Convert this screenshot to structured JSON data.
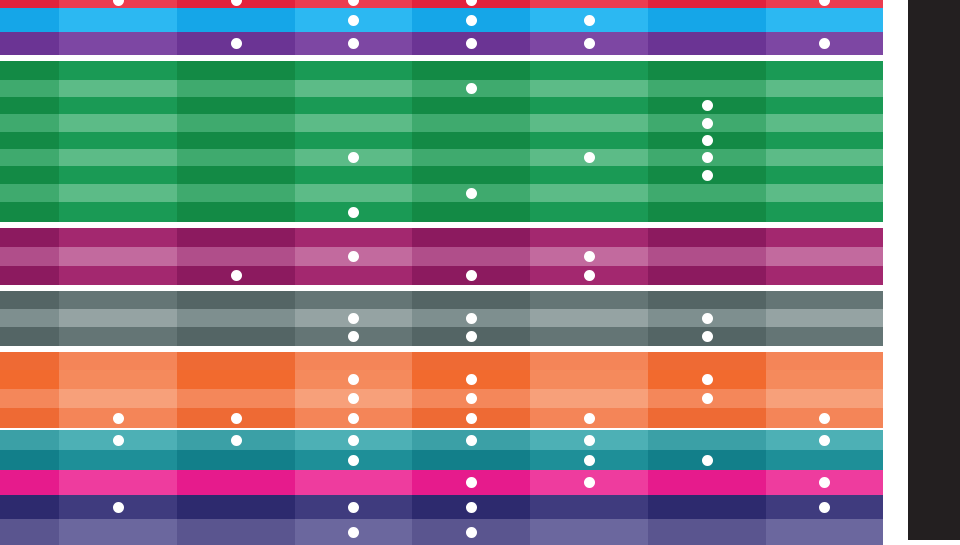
{
  "columns": 8,
  "colors": {
    "background": "#ffffff",
    "frame": "#231f20"
  },
  "groups": [
    {
      "name": "red",
      "rows": [
        {
          "dark": "#e2223d",
          "light": "#ec3c4f",
          "dots": [
            1,
            2,
            3,
            4,
            7
          ]
        }
      ]
    },
    {
      "name": "blue",
      "rows": [
        {
          "dark": "#15a6e8",
          "light": "#2cb8f2",
          "dots": [
            3,
            4,
            5
          ]
        }
      ]
    },
    {
      "name": "purple",
      "rows": [
        {
          "dark": "#6b3494",
          "light": "#7d47a3",
          "dots": [
            2,
            3,
            4,
            5,
            7
          ]
        }
      ]
    },
    {
      "name": "green",
      "rows": [
        {
          "dark": "#138a45",
          "light": "#1a9a55",
          "dots": []
        },
        {
          "dark": "#3faa6e",
          "light": "#5cbb87",
          "dots": [
            4
          ]
        },
        {
          "dark": "#138a45",
          "light": "#1a9a55",
          "dots": [
            6
          ]
        },
        {
          "dark": "#3faa6e",
          "light": "#5cbb87",
          "dots": [
            6
          ]
        },
        {
          "dark": "#138a45",
          "light": "#1a9a55",
          "dots": [
            6
          ]
        },
        {
          "dark": "#3faa6e",
          "light": "#5cbb87",
          "dots": [
            3,
            5,
            6
          ]
        },
        {
          "dark": "#138a45",
          "light": "#1a9a55",
          "dots": [
            6
          ]
        },
        {
          "dark": "#3faa6e",
          "light": "#5cbb87",
          "dots": [
            4
          ]
        },
        {
          "dark": "#138a45",
          "light": "#1a9a55",
          "dots": [
            3
          ]
        }
      ]
    },
    {
      "name": "magenta",
      "rows": [
        {
          "dark": "#8c1a5f",
          "light": "#a3286f",
          "dots": []
        },
        {
          "dark": "#b04e8a",
          "light": "#c26a9e",
          "dots": [
            3,
            5
          ]
        },
        {
          "dark": "#8c1a5f",
          "light": "#a3286f",
          "dots": [
            2,
            4,
            5
          ]
        }
      ]
    },
    {
      "name": "gray",
      "rows": [
        {
          "dark": "#546565",
          "light": "#647575",
          "dots": []
        },
        {
          "dark": "#7e8f8f",
          "light": "#95a3a3",
          "dots": [
            3,
            4,
            6
          ]
        },
        {
          "dark": "#546565",
          "light": "#647575",
          "dots": [
            3,
            4,
            6
          ]
        }
      ]
    },
    {
      "name": "orange",
      "rows": [
        {
          "dark": "#ee6a34",
          "light": "#f48558",
          "dots": []
        },
        {
          "dark": "#f26a2e",
          "light": "#f58a5c",
          "dots": [
            3,
            4,
            6
          ]
        },
        {
          "dark": "#f4875a",
          "light": "#f7a07a",
          "dots": [
            3,
            4,
            6
          ]
        },
        {
          "dark": "#ee6a34",
          "light": "#f48558",
          "dots": [
            1,
            2,
            3,
            4,
            5,
            7
          ]
        }
      ]
    },
    {
      "name": "teal",
      "rows": [
        {
          "dark": "#3ba0a6",
          "light": "#4db0b5",
          "dots": [
            1,
            2,
            3,
            4,
            5,
            7
          ]
        },
        {
          "dark": "#127f8a",
          "light": "#1e8f98",
          "dots": [
            3,
            5,
            6
          ]
        }
      ]
    },
    {
      "name": "pink",
      "rows": [
        {
          "dark": "#e61b8c",
          "light": "#ee3c9e",
          "dots": [
            4,
            5,
            7
          ]
        }
      ]
    },
    {
      "name": "navy",
      "rows": [
        {
          "dark": "#2d2a6e",
          "light": "#3f3b7e",
          "dots": [
            1,
            3,
            4,
            7
          ]
        },
        {
          "dark": "#5a558f",
          "light": "#6b679e",
          "dots": [
            3,
            4
          ]
        }
      ]
    }
  ]
}
